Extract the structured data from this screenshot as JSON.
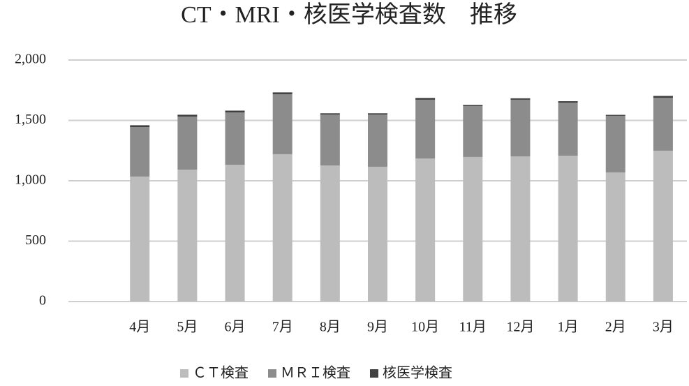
{
  "chart_data": {
    "type": "stacked_bar",
    "title": "CT・MRI・核医学検査数　推移",
    "categories": [
      null,
      "4月",
      "5月",
      "6月",
      "7月",
      "8月",
      "9月",
      "10月",
      "11月",
      "12月",
      "1月",
      "2月",
      "3月"
    ],
    "series": [
      {
        "name": "ＣＴ検査",
        "color": "#bcbcbc",
        "values": [
          null,
          1035,
          1092,
          1133,
          1220,
          1127,
          1116,
          1185,
          1197,
          1202,
          1208,
          1069,
          1249
        ]
      },
      {
        "name": "ＭＲＩ検査",
        "color": "#8c8c8c",
        "values": [
          null,
          410,
          440,
          433,
          497,
          422,
          433,
          486,
          421,
          469,
          439,
          469,
          439
        ]
      },
      {
        "name": "核医学検査",
        "color": "#404040",
        "values": [
          null,
          15,
          15,
          15,
          15,
          10,
          10,
          15,
          10,
          12,
          12,
          8,
          15
        ]
      }
    ],
    "ylim": [
      0,
      2000
    ],
    "yticks": [
      0,
      500,
      {
        "value": 1000,
        "label": "1,000"
      },
      {
        "value": 1500,
        "label": "1,500"
      },
      {
        "value": 2000,
        "label": "2,000"
      }
    ],
    "grid": true,
    "legend": "bottom"
  }
}
